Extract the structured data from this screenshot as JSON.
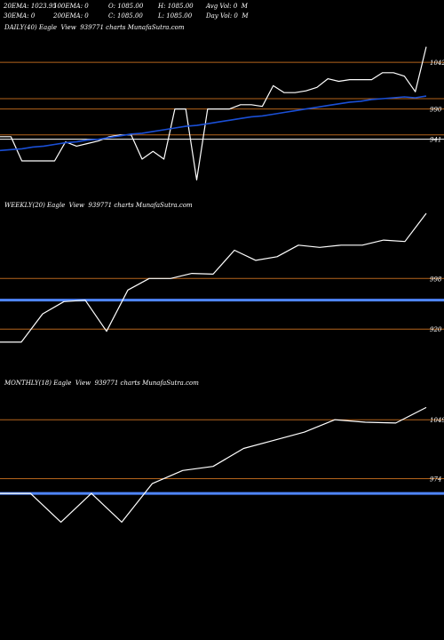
{
  "header": {
    "row1": {
      "ema20": "20EMA: 1023.95",
      "ema100": "100EMA: 0",
      "open": "O: 1085.00",
      "high": "H: 1085.00",
      "avg_vol": "Avg Vol: 0  M"
    },
    "row2": {
      "ema30": "30EMA: 0",
      "ema200": "200EMA: 0",
      "close": "C: 1085.00",
      "low": "L: 1085.00",
      "day_vol": "Day Vol: 0  M"
    }
  },
  "chart_data": [
    {
      "type": "line",
      "title": "DAILY(40) Eagle  View  939771 charts MunafaSutra.com",
      "ylim": [
        895,
        1075
      ],
      "levels": [
        {
          "value": "1042",
          "y": 1044,
          "color": "#b5651d",
          "labeled": true
        },
        {
          "value": "1000",
          "y": 1002,
          "color": "#b5651d",
          "labeled": false
        },
        {
          "value": "990",
          "y": 990,
          "color": "#b5651d",
          "labeled": true
        },
        {
          "value": "955",
          "y": 960,
          "color": "#b5651d",
          "labeled": false
        },
        {
          "value": "941",
          "y": 955,
          "color": "#ffffff",
          "labeled": true
        }
      ],
      "series": [
        {
          "values": [
            958,
            958,
            930,
            930,
            930,
            930,
            952,
            947,
            950,
            953,
            958,
            960,
            960,
            932,
            941,
            932,
            990,
            990,
            908,
            990,
            990,
            990,
            995,
            995,
            993,
            1017,
            1009,
            1009,
            1011,
            1015,
            1025,
            1022,
            1024,
            1024,
            1024,
            1032,
            1032,
            1028,
            1010,
            1062
          ],
          "color": "#ffffff"
        },
        {
          "values": [
            942,
            943,
            944,
            946,
            947,
            949,
            951,
            952,
            954,
            955,
            957,
            959,
            961,
            962,
            964,
            966,
            968,
            970,
            971,
            973,
            975,
            977,
            979,
            981,
            982,
            984,
            986,
            988,
            990,
            992,
            994,
            996,
            998,
            999,
            1001,
            1002,
            1003,
            1004,
            1003,
            1005
          ],
          "color": "#1a4fd6"
        }
      ]
    },
    {
      "type": "line",
      "title": "WEEKLY(20) Eagle  View  939771 charts MunafaSutra.com",
      "ylim": [
        870,
        1085
      ],
      "levels": [
        {
          "value": "998",
          "y": 995,
          "color": "#b5651d",
          "labeled": true
        },
        {
          "value": "965",
          "y": 965,
          "color": "#4f86ff",
          "labeled": false,
          "thick": true
        },
        {
          "value": "920",
          "y": 925,
          "color": "#b5651d",
          "labeled": true
        }
      ],
      "series": [
        {
          "values": [
            907,
            907,
            946,
            963,
            965,
            922,
            979,
            995,
            995,
            1002,
            1001,
            1034,
            1020,
            1025,
            1041,
            1038,
            1041,
            1041,
            1048,
            1046,
            1085
          ],
          "color": "#ffffff"
        }
      ]
    },
    {
      "type": "line",
      "title": "MONTHLY(18) Eagle  View  939771 charts MunafaSutra.com",
      "ylim": [
        895,
        1085
      ],
      "levels": [
        {
          "value": "1049",
          "y": 1050,
          "color": "#b5651d",
          "labeled": true
        },
        {
          "value": "974",
          "y": 978,
          "color": "#b5651d",
          "labeled": true
        },
        {
          "value": "960",
          "y": 960,
          "color": "#4f86ff",
          "labeled": false,
          "thick": true
        }
      ],
      "series": [
        {
          "values": [
            960,
            960,
            925,
            960,
            925,
            972,
            988,
            993,
            1015,
            1025,
            1035,
            1050,
            1047,
            1046,
            1065
          ],
          "color": "#ffffff"
        }
      ]
    }
  ]
}
